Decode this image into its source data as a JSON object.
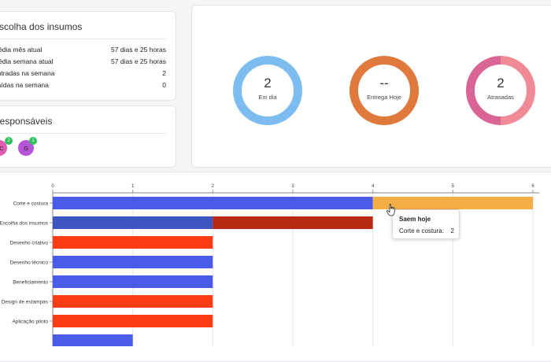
{
  "summary": {
    "title": "Escolha dos insumos",
    "rows": [
      {
        "label": "Média mês atual",
        "value": "57 dias e 25 horas"
      },
      {
        "label": "Média semana atual",
        "value": "57 dias e 25 horas"
      },
      {
        "label": "Entradas na semana",
        "value": "2"
      },
      {
        "label": "Saídas na semana",
        "value": "0"
      }
    ]
  },
  "responsaveis": {
    "title": "Responsáveis",
    "avatars": [
      {
        "initials": "GC",
        "count": "2",
        "color": "#e35ab2"
      },
      {
        "initials": "G",
        "count": "1",
        "color": "#b454d6"
      }
    ]
  },
  "status": [
    {
      "value": "2",
      "label": "Em dia",
      "color": "#7cbcf0",
      "color2": "#7cbcf0"
    },
    {
      "value": "--",
      "label": "Entrega Hoje",
      "color": "#e07a3c",
      "color2": "#e07a3c"
    },
    {
      "value": "2",
      "label": "Atrasadas",
      "color": "#f08a96",
      "color2": "#d96595"
    }
  ],
  "chart_data": {
    "type": "bar",
    "orientation": "horizontal",
    "stacked": true,
    "categories": [
      "Corte e costura",
      "Escolha dos insumos",
      "Desenho criativo",
      "Desenho técnico",
      "Beneficiamento",
      "Design de estampas",
      "Aplicação piloto",
      ""
    ],
    "xlim": [
      0,
      6
    ],
    "xticks": [
      0,
      1,
      2,
      3,
      4,
      5,
      6
    ],
    "grid": true,
    "segments": [
      [
        {
          "value": 4,
          "color": "#4a5bea"
        },
        {
          "value": 2,
          "color": "#f3ae45"
        }
      ],
      [
        {
          "value": 2,
          "color": "#3e54c0"
        },
        {
          "value": 2,
          "color": "#b62b13"
        }
      ],
      [
        {
          "value": 2,
          "color": "#fb3d15"
        }
      ],
      [
        {
          "value": 2,
          "color": "#4a5bea"
        }
      ],
      [
        {
          "value": 2,
          "color": "#4a5bea"
        }
      ],
      [
        {
          "value": 2,
          "color": "#fb3d15"
        }
      ],
      [
        {
          "value": 2,
          "color": "#fb3d15"
        }
      ],
      [
        {
          "value": 1,
          "color": "#4a5bea"
        }
      ]
    ]
  },
  "tooltip": {
    "title": "Saem hoje",
    "label": "Corte e costura:",
    "value": "2"
  }
}
